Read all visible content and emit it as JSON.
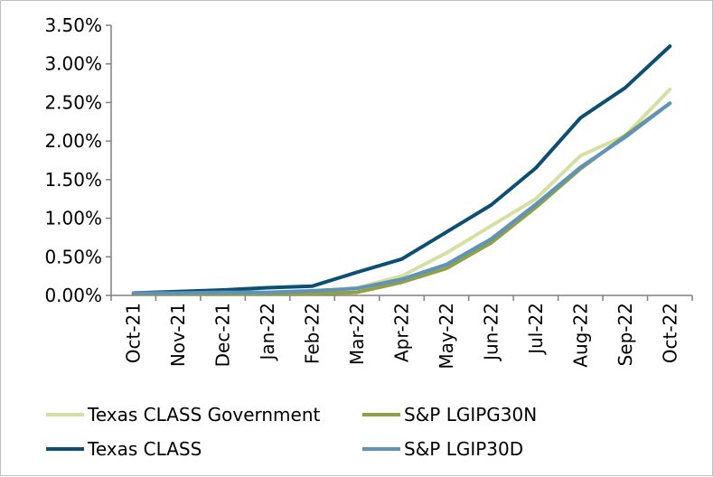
{
  "chart_data": {
    "type": "line",
    "title": "",
    "xlabel": "",
    "ylabel": "",
    "categories": [
      "Oct-21",
      "Nov-21",
      "Dec-21",
      "Jan-22",
      "Feb-22",
      "Mar-22",
      "Apr-22",
      "May-22",
      "Jun-22",
      "Jul-22",
      "Aug-22",
      "Sep-22",
      "Oct-22"
    ],
    "ylim": [
      0,
      3.5
    ],
    "yticks": [
      0,
      0.5,
      1.0,
      1.5,
      2.0,
      2.5,
      3.0,
      3.5
    ],
    "ytick_labels": [
      "0.00%",
      "0.50%",
      "1.00%",
      "1.50%",
      "2.00%",
      "2.50%",
      "3.00%",
      "3.50%"
    ],
    "grid": false,
    "legend_position": "bottom",
    "series": [
      {
        "name": "Texas CLASS Government",
        "color": "#d5dea3",
        "values": [
          0.03,
          0.03,
          0.03,
          0.03,
          0.04,
          0.1,
          0.25,
          0.55,
          0.9,
          1.25,
          1.81,
          2.07,
          2.67
        ]
      },
      {
        "name": "S&P LGIPG30N",
        "color": "#8fa045",
        "values": [
          0.02,
          0.02,
          0.02,
          0.02,
          0.02,
          0.04,
          0.17,
          0.35,
          0.68,
          1.14,
          1.64,
          2.07,
          2.49
        ]
      },
      {
        "name": "Texas CLASS",
        "color": "#0c4f72",
        "values": [
          0.03,
          0.05,
          0.07,
          0.1,
          0.12,
          0.3,
          0.47,
          0.82,
          1.17,
          1.65,
          2.3,
          2.69,
          3.23
        ]
      },
      {
        "name": "S&P LGIP30D",
        "color": "#5f93ba",
        "values": [
          0.03,
          0.03,
          0.04,
          0.04,
          0.06,
          0.09,
          0.21,
          0.4,
          0.73,
          1.18,
          1.66,
          2.05,
          2.49
        ]
      }
    ]
  }
}
